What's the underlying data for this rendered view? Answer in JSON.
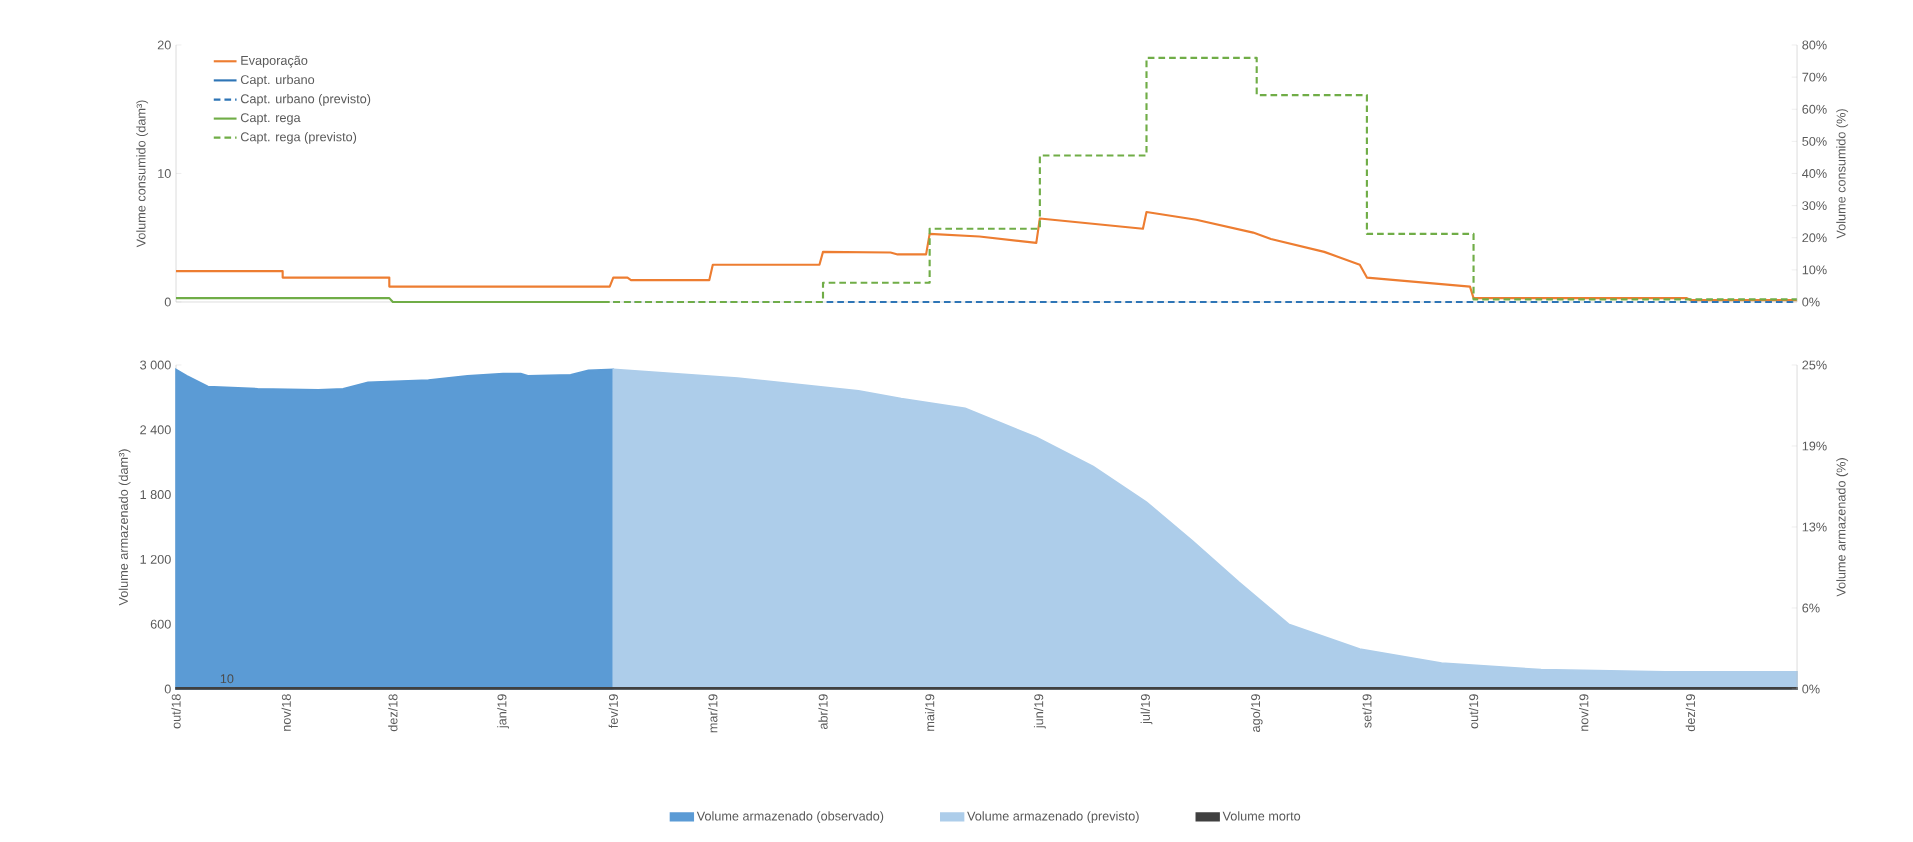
{
  "chart_data": [
    {
      "type": "line",
      "ylabel": "Volume consumido (dam³)",
      "y2label": "Volume consumido (%)",
      "xlim": [
        "2018-10-01",
        "2019-12-31"
      ],
      "ylim": [
        0,
        20
      ],
      "yticks": [
        0,
        10,
        20
      ],
      "y2lim": [
        0,
        80
      ],
      "y2ticks": [
        {
          "value": 0,
          "label": "0%"
        },
        {
          "value": 10,
          "label": "10%"
        },
        {
          "value": 20,
          "label": "20%"
        },
        {
          "value": 30,
          "label": "30%"
        },
        {
          "value": 40,
          "label": "40%"
        },
        {
          "value": 50,
          "label": "50%"
        },
        {
          "value": 60,
          "label": "60%"
        },
        {
          "value": 70,
          "label": "70%"
        },
        {
          "value": 80,
          "label": "80%"
        }
      ],
      "tick_labels": "y",
      "legend": "top left",
      "marker": "none",
      "series": [
        {
          "name": "Evaporação",
          "color": "#ed7d31",
          "line_style": "solid",
          "x": [
            "2018-10-01",
            "2018-10-31",
            "2018-10-31",
            "2018-11-30",
            "2018-11-30",
            "2019-01-31",
            "2019-02-01",
            "2019-02-05",
            "2019-02-06",
            "2019-02-28",
            "2019-03-01",
            "2019-03-31",
            "2019-04-01",
            "2019-04-20",
            "2019-04-22",
            "2019-04-30",
            "2019-05-01",
            "2019-05-15",
            "2019-05-31",
            "2019-06-01",
            "2019-06-30",
            "2019-07-01",
            "2019-07-15",
            "2019-07-31",
            "2019-08-05",
            "2019-08-20",
            "2019-08-30",
            "2019-09-01",
            "2019-09-30",
            "2019-10-01",
            "2019-11-30",
            "2019-12-01",
            "2019-12-31"
          ],
          "values": [
            2.4,
            2.4,
            1.9,
            1.9,
            1.2,
            1.2,
            1.9,
            1.9,
            1.7,
            1.7,
            2.9,
            2.9,
            3.9,
            3.85,
            3.7,
            3.7,
            5.3,
            5.1,
            4.6,
            6.5,
            5.7,
            7.0,
            6.4,
            5.4,
            4.9,
            3.9,
            2.9,
            1.9,
            1.2,
            0.3,
            0.3,
            0.15,
            0.15
          ]
        },
        {
          "name": "Capt. urbano",
          "color": "#2e75b6",
          "line_style": "solid"
        },
        {
          "name": "Capt. urbano (previsto)",
          "color": "#2e75b6",
          "line_style": "dashed",
          "x": [
            "2019-02-01",
            "2019-12-31"
          ],
          "values": [
            0,
            0
          ]
        },
        {
          "name": "Capt. rega",
          "color": "#70ad47",
          "line_style": "solid",
          "x": [
            "2018-10-01",
            "2018-11-30",
            "2018-12-01",
            "2019-01-31"
          ],
          "values": [
            0.3,
            0.3,
            0,
            0
          ]
        },
        {
          "name": "Capt. rega (previsto)",
          "type": "step",
          "color": "#70ad47",
          "line_style": "dashed",
          "x": [
            "2019-02-01",
            "2019-04-01",
            "2019-05-01",
            "2019-06-01",
            "2019-07-01",
            "2019-08-01",
            "2019-09-01",
            "2019-10-01",
            "2019-12-31"
          ],
          "values": [
            0,
            1.5,
            5.7,
            11.4,
            19.0,
            16.1,
            5.3,
            0.2,
            0.2
          ]
        }
      ]
    },
    {
      "type": "area",
      "ylabel": "Volume armazenado (dam³)",
      "y2label": "Volume armazenado (%)",
      "xlim": [
        "2018-10-01",
        "2019-12-31"
      ],
      "xticks": [
        {
          "value": "2018-10-01",
          "label": "out/18"
        },
        {
          "value": "2018-11-01",
          "label": "nov/18"
        },
        {
          "value": "2018-12-01",
          "label": "dez/18"
        },
        {
          "value": "2019-01-01",
          "label": "jan/19"
        },
        {
          "value": "2019-02-01",
          "label": "fev/19"
        },
        {
          "value": "2019-03-01",
          "label": "mar/19"
        },
        {
          "value": "2019-04-01",
          "label": "abr/19"
        },
        {
          "value": "2019-05-01",
          "label": "mai/19"
        },
        {
          "value": "2019-06-01",
          "label": "jun/19"
        },
        {
          "value": "2019-07-01",
          "label": "jul/19"
        },
        {
          "value": "2019-08-01",
          "label": "ago/19"
        },
        {
          "value": "2019-09-01",
          "label": "set/19"
        },
        {
          "value": "2019-10-01",
          "label": "out/19"
        },
        {
          "value": "2019-11-01",
          "label": "nov/19"
        },
        {
          "value": "2019-12-01",
          "label": "dez/19"
        }
      ],
      "ylim": [
        0,
        3000
      ],
      "yticks": [
        0,
        600,
        {
          "value": 1200,
          "label": "1 200"
        },
        {
          "value": 1800,
          "label": "1 800"
        },
        {
          "value": 2400,
          "label": "2 400"
        },
        {
          "value": 3000,
          "label": "3 000"
        }
      ],
      "y2lim": [
        0,
        25
      ],
      "y2ticks": [
        {
          "value": 0,
          "label": "0%"
        },
        {
          "value": 6.25,
          "label": "6%"
        },
        {
          "value": 12.5,
          "label": "13%"
        },
        {
          "value": 18.75,
          "label": "19%"
        },
        {
          "value": 25,
          "label": "25%"
        }
      ],
      "legend": "bottom",
      "annotations": [
        {
          "text": "10",
          "x": "2018-10-12",
          "y": 10
        }
      ],
      "series": [
        {
          "name": "Volume armazenado (observado)",
          "color": "#5b9bd5",
          "x": [
            "2018-10-01",
            "2018-10-04",
            "2018-10-10",
            "2018-10-24",
            "2018-11-10",
            "2018-11-17",
            "2018-11-24",
            "2018-12-11",
            "2018-12-22",
            "2019-01-01",
            "2019-01-06",
            "2019-01-08",
            "2019-01-20",
            "2019-01-25",
            "2019-02-01"
          ],
          "values": [
            2960,
            2900,
            2800,
            2780,
            2770,
            2780,
            2840,
            2860,
            2900,
            2920,
            2920,
            2900,
            2910,
            2950,
            2960
          ]
        },
        {
          "name": "Volume armazenado (previsto)",
          "color": "#adcdea",
          "x": [
            "2019-02-01",
            "2019-03-08",
            "2019-04-11",
            "2019-04-23",
            "2019-05-11",
            "2019-05-31",
            "2019-06-16",
            "2019-07-01",
            "2019-07-14",
            "2019-07-27",
            "2019-08-10",
            "2019-08-30",
            "2019-09-22",
            "2019-10-20",
            "2019-11-24",
            "2019-12-31"
          ],
          "values": [
            2960,
            2880,
            2760,
            2690,
            2600,
            2330,
            2060,
            1730,
            1370,
            990,
            600,
            370,
            240,
            180,
            160,
            160
          ]
        },
        {
          "name": "Volume morto",
          "color": "#404040",
          "x": [
            "2018-10-01",
            "2019-12-31"
          ],
          "values": [
            10,
            10
          ]
        }
      ]
    }
  ]
}
